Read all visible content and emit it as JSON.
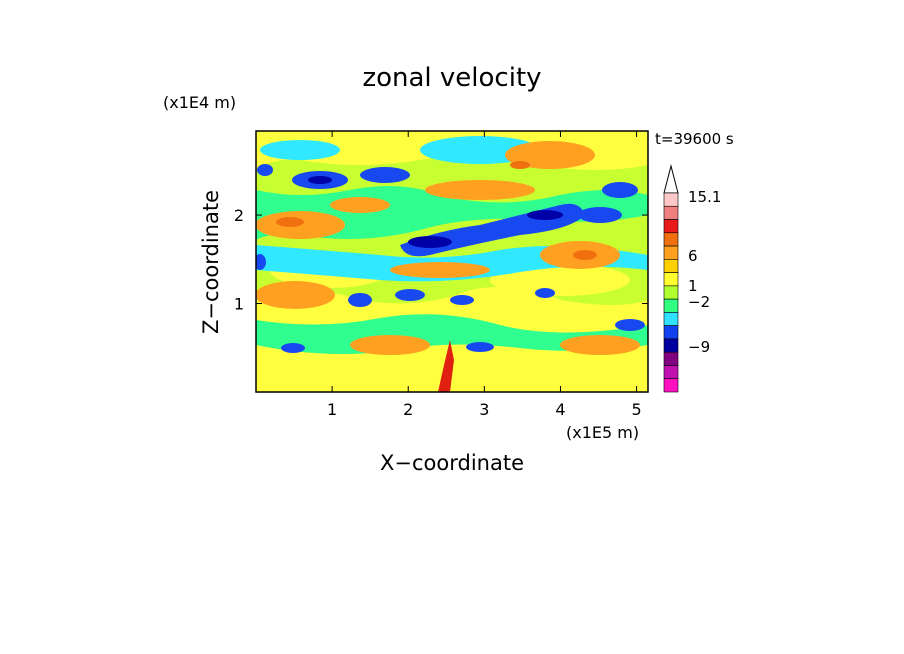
{
  "chart_data": {
    "type": "heatmap",
    "title": "zonal velocity",
    "xlabel": "X−coordinate",
    "ylabel": "Z−coordinate",
    "x_unit": "(x1E5 m)",
    "y_unit": "(x1E4 m)",
    "time_label": "t=39600 s",
    "xlim": [
      0,
      5.15
    ],
    "ylim": [
      0,
      2.95
    ],
    "x_ticks": [
      1,
      2,
      3,
      4,
      5
    ],
    "y_ticks": [
      1,
      2
    ],
    "x_tick_labels": [
      "1",
      "2",
      "3",
      "4",
      "5"
    ],
    "y_tick_labels": [
      "1",
      "2"
    ],
    "colorbar": {
      "labels": [
        {
          "text": "15.1",
          "value": 15.1
        },
        {
          "text": "6",
          "value": 6
        },
        {
          "text": "1",
          "value": 1
        },
        {
          "text": "−2",
          "value": -2
        },
        {
          "text": "−9",
          "value": -9
        }
      ],
      "colors_top_to_bottom": [
        "#ffc8c8",
        "#f08080",
        "#e81a1a",
        "#f07010",
        "#ffa020",
        "#ffd000",
        "#ffff30",
        "#b0ff30",
        "#30ff80",
        "#30e0ff",
        "#1040f0",
        "#0000a0",
        "#800080",
        "#c010b0",
        "#ff10c0"
      ],
      "extend_max_color": "#ffffff"
    },
    "field_colors": {
      "background": "#c8ff30",
      "yellow": "#ffff40",
      "orange": "#ffa020",
      "dark_orange": "#f07010",
      "green": "#30ff90",
      "cyan": "#30e8ff",
      "blue": "#1848f0",
      "dark_blue": "#0000a8",
      "red": "#e02010"
    }
  }
}
